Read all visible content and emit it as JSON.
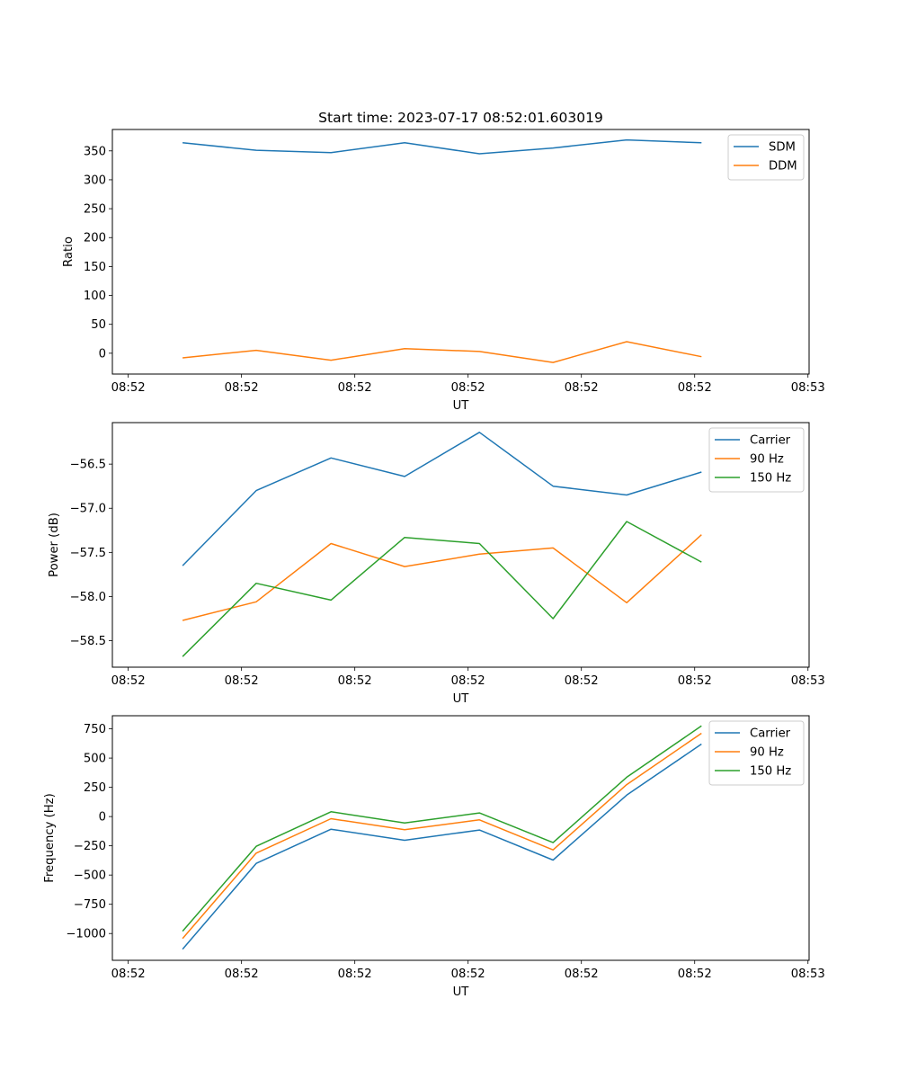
{
  "figure_title": "Start time: 2023-07-17 08:52:01.603019",
  "colors": {
    "blue": "#1f77b4",
    "orange": "#ff7f0e",
    "green": "#2ca02c"
  },
  "chart_data": [
    {
      "type": "line",
      "title": "Start time: 2023-07-17 08:52:01.603019",
      "xlabel": "UT",
      "ylabel": "Ratio",
      "x_unit": "seconds after 08:52:00",
      "x": [
        4.8,
        11.3,
        17.9,
        24.4,
        31.0,
        37.5,
        44.0,
        50.6
      ],
      "xlim": [
        -1.4,
        60.1
      ],
      "xticks": [
        0,
        10,
        20,
        30,
        40,
        50,
        60
      ],
      "xtick_labels": [
        "08:52",
        "08:52",
        "08:52",
        "08:52",
        "08:52",
        "08:52",
        "08:53"
      ],
      "ylim": [
        -36,
        387
      ],
      "yticks": [
        0,
        50,
        100,
        150,
        200,
        250,
        300,
        350
      ],
      "ytick_labels": [
        "0",
        "50",
        "100",
        "150",
        "200",
        "250",
        "300",
        "350"
      ],
      "legend": "top-right",
      "grid": false,
      "series": [
        {
          "name": "SDM",
          "color": "#1f77b4",
          "values": [
            364,
            351,
            347,
            364,
            345,
            355,
            369,
            364
          ]
        },
        {
          "name": "DDM",
          "color": "#ff7f0e",
          "values": [
            -8,
            5,
            -12,
            8,
            3,
            -16,
            20,
            -6
          ]
        }
      ]
    },
    {
      "type": "line",
      "title": "",
      "xlabel": "UT",
      "ylabel": "Power (dB)",
      "x_unit": "seconds after 08:52:00",
      "x": [
        4.8,
        11.3,
        17.9,
        24.4,
        31.0,
        37.5,
        44.0,
        50.6
      ],
      "xlim": [
        -1.4,
        60.1
      ],
      "xticks": [
        0,
        10,
        20,
        30,
        40,
        50,
        60
      ],
      "xtick_labels": [
        "08:52",
        "08:52",
        "08:52",
        "08:52",
        "08:52",
        "08:52",
        "08:53"
      ],
      "ylim": [
        -58.8,
        -56.03
      ],
      "yticks": [
        -58.5,
        -58.0,
        -57.5,
        -57.0,
        -56.5
      ],
      "ytick_labels": [
        "−58.5",
        "−58.0",
        "−57.5",
        "−57.0",
        "−56.5"
      ],
      "legend": "top-right",
      "grid": false,
      "series": [
        {
          "name": "Carrier",
          "color": "#1f77b4",
          "values": [
            -57.65,
            -56.8,
            -56.43,
            -56.64,
            -56.14,
            -56.75,
            -56.85,
            -56.59
          ]
        },
        {
          "name": "90 Hz",
          "color": "#ff7f0e",
          "values": [
            -58.27,
            -58.06,
            -57.4,
            -57.66,
            -57.52,
            -57.45,
            -58.07,
            -57.3
          ]
        },
        {
          "name": "150 Hz",
          "color": "#2ca02c",
          "values": [
            -58.68,
            -57.85,
            -58.04,
            -57.33,
            -57.4,
            -58.25,
            -57.15,
            -57.61
          ]
        }
      ]
    },
    {
      "type": "line",
      "title": "",
      "xlabel": "UT",
      "ylabel": "Frequency (Hz)",
      "x_unit": "seconds after 08:52:00",
      "x": [
        4.8,
        11.3,
        17.9,
        24.4,
        31.0,
        37.5,
        44.0,
        50.6
      ],
      "xlim": [
        -1.4,
        60.1
      ],
      "xticks": [
        0,
        10,
        20,
        30,
        40,
        50,
        60
      ],
      "xtick_labels": [
        "08:52",
        "08:52",
        "08:52",
        "08:52",
        "08:52",
        "08:52",
        "08:53"
      ],
      "ylim": [
        -1229,
        862
      ],
      "yticks": [
        -1000,
        -750,
        -500,
        -250,
        0,
        250,
        500,
        750
      ],
      "ytick_labels": [
        "−1000",
        "−750",
        "−500",
        "−250",
        "0",
        "250",
        "500",
        "750"
      ],
      "legend": "top-right",
      "grid": false,
      "series": [
        {
          "name": "Carrier",
          "color": "#1f77b4",
          "values": [
            -1134,
            -400,
            -108,
            -203,
            -115,
            -372,
            183,
            620
          ]
        },
        {
          "name": "90 Hz",
          "color": "#ff7f0e",
          "values": [
            -1042,
            -313,
            -18,
            -113,
            -28,
            -285,
            273,
            712
          ]
        },
        {
          "name": "150 Hz",
          "color": "#2ca02c",
          "values": [
            -980,
            -254,
            41,
            -54,
            31,
            -223,
            336,
            775
          ]
        }
      ]
    }
  ]
}
